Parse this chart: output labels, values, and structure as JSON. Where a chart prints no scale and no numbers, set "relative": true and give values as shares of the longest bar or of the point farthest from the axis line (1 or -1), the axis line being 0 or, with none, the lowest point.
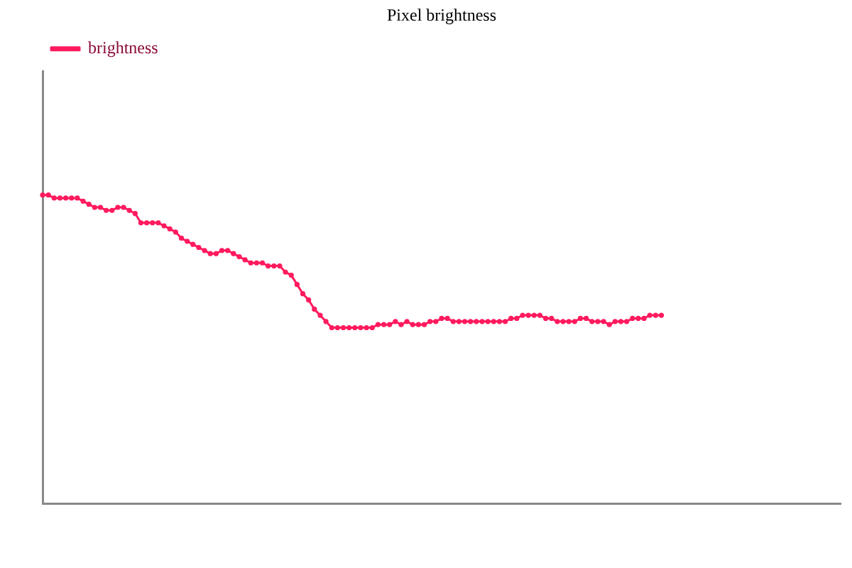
{
  "chart_data": {
    "type": "line",
    "title": "Pixel brightness",
    "relative": true,
    "legend": "top left",
    "marker": "circle",
    "line_style": "solid",
    "grid": false,
    "categories": [
      null,
      null,
      null,
      null,
      null,
      null,
      null,
      null,
      null,
      null,
      null,
      null,
      null,
      null,
      null,
      null,
      null,
      null,
      null,
      null,
      null,
      null,
      null,
      null,
      null,
      null,
      null,
      null,
      null,
      null,
      null,
      null,
      null,
      null,
      null,
      null,
      null,
      null,
      null,
      null,
      null,
      null,
      null,
      null,
      null,
      null,
      null,
      null,
      null,
      null,
      null,
      null,
      null,
      null,
      null,
      null,
      null,
      null,
      null,
      null,
      null,
      null,
      null,
      null,
      null,
      null,
      null,
      null,
      null,
      null,
      null,
      null,
      null,
      null,
      null,
      null,
      null,
      null,
      null,
      null,
      null,
      null,
      null,
      null,
      null,
      null,
      null,
      null,
      null,
      null,
      null,
      null,
      null,
      null,
      null,
      null,
      null,
      null,
      null,
      null,
      null,
      null,
      null,
      null,
      null,
      null,
      null,
      null,
      null,
      null,
      null,
      null,
      null,
      null,
      null,
      null,
      null,
      null,
      null,
      null,
      null,
      null,
      null,
      null,
      null,
      null,
      null,
      null,
      null,
      null,
      null,
      null,
      null,
      null,
      null,
      null,
      null,
      null,
      null
    ],
    "series": [
      {
        "name": "brightness",
        "color": "#ff1a5e",
        "values": [
          1.0,
          1.0,
          0.99,
          0.99,
          0.99,
          0.99,
          0.99,
          0.98,
          0.97,
          0.96,
          0.96,
          0.95,
          0.95,
          0.96,
          0.96,
          0.95,
          0.94,
          0.91,
          0.91,
          0.91,
          0.91,
          0.9,
          0.89,
          0.88,
          0.86,
          0.85,
          0.84,
          0.83,
          0.82,
          0.81,
          0.81,
          0.82,
          0.82,
          0.81,
          0.8,
          0.79,
          0.78,
          0.78,
          0.78,
          0.77,
          0.77,
          0.77,
          0.75,
          0.74,
          0.71,
          0.68,
          0.66,
          0.63,
          0.61,
          0.59,
          0.57,
          0.57,
          0.57,
          0.57,
          0.57,
          0.57,
          0.57,
          0.57,
          0.58,
          0.58,
          0.58,
          0.59,
          0.58,
          0.59,
          0.58,
          0.58,
          0.58,
          0.59,
          0.59,
          0.6,
          0.6,
          0.59,
          0.59,
          0.59,
          0.59,
          0.59,
          0.59,
          0.59,
          0.59,
          0.59,
          0.59,
          0.6,
          0.6,
          0.61,
          0.61,
          0.61,
          0.61,
          0.6,
          0.6,
          0.59,
          0.59,
          0.59,
          0.59,
          0.6,
          0.6,
          0.59,
          0.59,
          0.59,
          0.58,
          0.59,
          0.59,
          0.59,
          0.6,
          0.6,
          0.6,
          0.61,
          0.61,
          0.61,
          null,
          null,
          null,
          null,
          null,
          null,
          null,
          null,
          null,
          null,
          null,
          null,
          null,
          null,
          null,
          null,
          null,
          null,
          null,
          null,
          null,
          null,
          null,
          null,
          null,
          null,
          null,
          null,
          null,
          null,
          null
        ]
      }
    ]
  }
}
